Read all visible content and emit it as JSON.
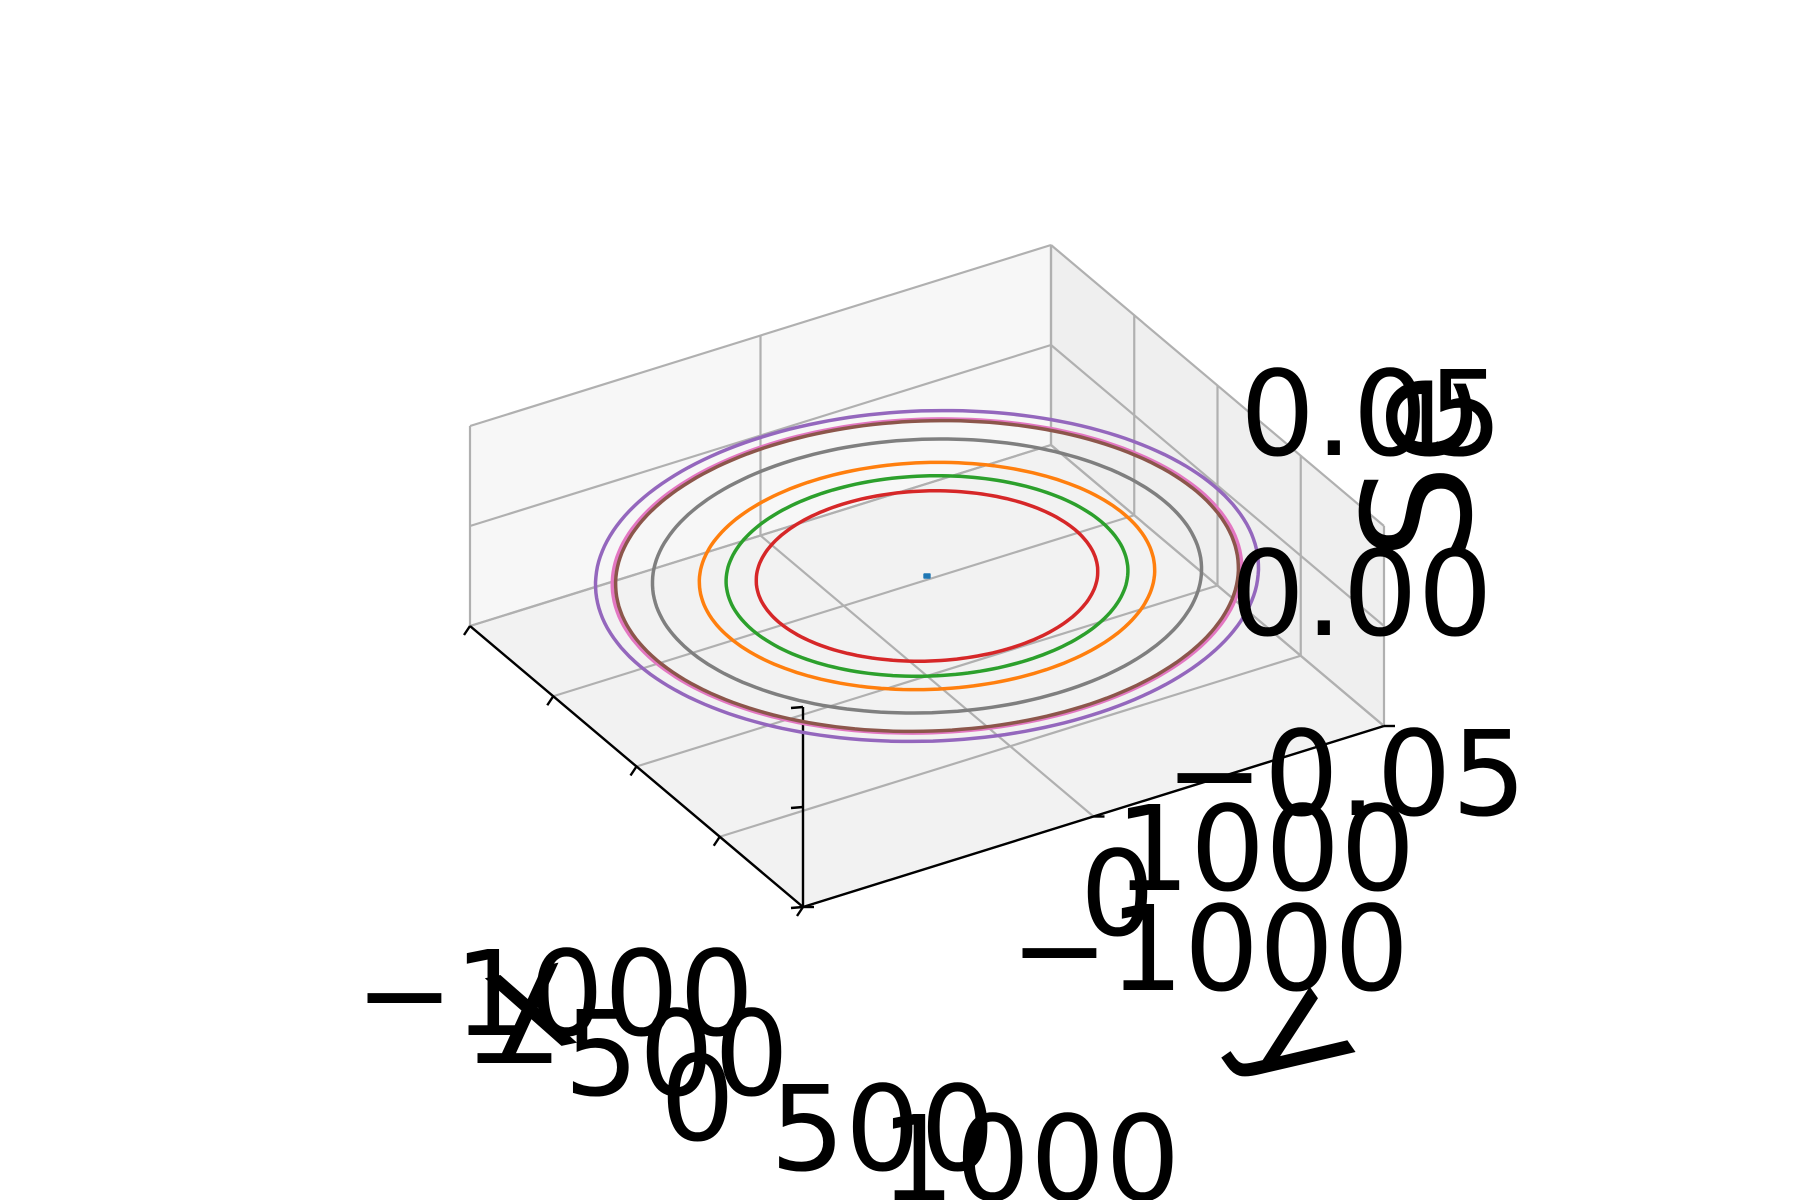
{
  "chart_data": {
    "type": "line",
    "projection": "3d",
    "grid": true,
    "legend": "none",
    "title": "",
    "xlabel": "x",
    "ylabel": "y",
    "zlabel": "Se",
    "xlim": [
      -1000,
      1000
    ],
    "ylim": [
      -1000,
      1000
    ],
    "zlim": [
      -0.05,
      0.05
    ],
    "x_ticks": [
      "−1000",
      "−500",
      "0",
      "500",
      "1000"
    ],
    "y_ticks": [
      "−1000",
      "0",
      "1000"
    ],
    "z_ticks": [
      "−0.05",
      "0.00",
      "0.05"
    ],
    "series": [
      {
        "color": "#1f77b4",
        "radius": 5,
        "z": 0
      },
      {
        "color": "#9467bd",
        "radius": 990,
        "z": 0
      },
      {
        "color": "#e377c2",
        "radius": 940,
        "z": 0
      },
      {
        "color": "#8c564b",
        "radius": 930,
        "z": 0
      },
      {
        "color": "#7f7f7f",
        "radius": 820,
        "z": 0
      },
      {
        "color": "#ff7f0e",
        "radius": 680,
        "z": 0
      },
      {
        "color": "#2ca02c",
        "radius": 600,
        "z": 0
      },
      {
        "color": "#d62728",
        "radius": 510,
        "z": 0
      }
    ]
  }
}
